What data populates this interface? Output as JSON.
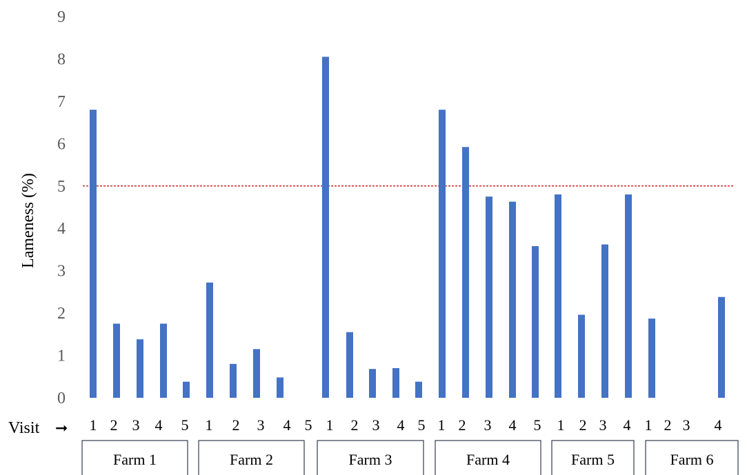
{
  "chart_data": {
    "type": "bar",
    "ylabel": "Lameness (%)",
    "ylim": [
      0,
      9
    ],
    "yticks": [
      "0",
      "1",
      "2",
      "3",
      "4",
      "5",
      "6",
      "7",
      "8",
      "9"
    ],
    "visit_label": "Visit",
    "visit_arrow": "➞",
    "threshold": 5,
    "colors": {
      "bar": "#4472C4",
      "threshold_line": "#C00000",
      "farm_box_border": "#2f3b4c"
    },
    "farms": [
      {
        "name": "Farm 1",
        "visits": [
          {
            "label": "1",
            "value": 6.8
          },
          {
            "label": "2",
            "value": 1.75
          },
          {
            "label": "3",
            "value": 1.38
          },
          {
            "label": "4",
            "value": 1.75
          },
          {
            "label": "5",
            "value": 0.38
          }
        ]
      },
      {
        "name": "Farm 2",
        "visits": [
          {
            "label": "1",
            "value": 2.72
          },
          {
            "label": "2",
            "value": 0.8
          },
          {
            "label": "3",
            "value": 1.15
          },
          {
            "label": "4",
            "value": 0.48
          },
          {
            "label": "5",
            "value": 0
          }
        ]
      },
      {
        "name": "Farm 3",
        "visits": [
          {
            "label": "1",
            "value": 8.05
          },
          {
            "label": "2",
            "value": 1.55
          },
          {
            "label": "3",
            "value": 0.68
          },
          {
            "label": "4",
            "value": 0.7
          },
          {
            "label": "5",
            "value": 0.38
          }
        ]
      },
      {
        "name": "Farm 4",
        "visits": [
          {
            "label": "1",
            "value": 6.8
          },
          {
            "label": "2",
            "value": 5.92
          },
          {
            "label": "3",
            "value": 4.75
          },
          {
            "label": "4",
            "value": 4.63
          },
          {
            "label": "5",
            "value": 3.58
          }
        ]
      },
      {
        "name": "Farm 5",
        "visits": [
          {
            "label": "1",
            "value": 4.8
          },
          {
            "label": "2",
            "value": 1.96
          },
          {
            "label": "3",
            "value": 3.62
          },
          {
            "label": "4",
            "value": 4.8
          }
        ]
      },
      {
        "name": "Farm 6",
        "visits": [
          {
            "label": "1",
            "value": 1.87
          },
          {
            "label": "2",
            "value": 0
          },
          {
            "label": "3",
            "value": 0
          },
          {
            "label": "4",
            "value": 2.38
          }
        ]
      }
    ]
  }
}
